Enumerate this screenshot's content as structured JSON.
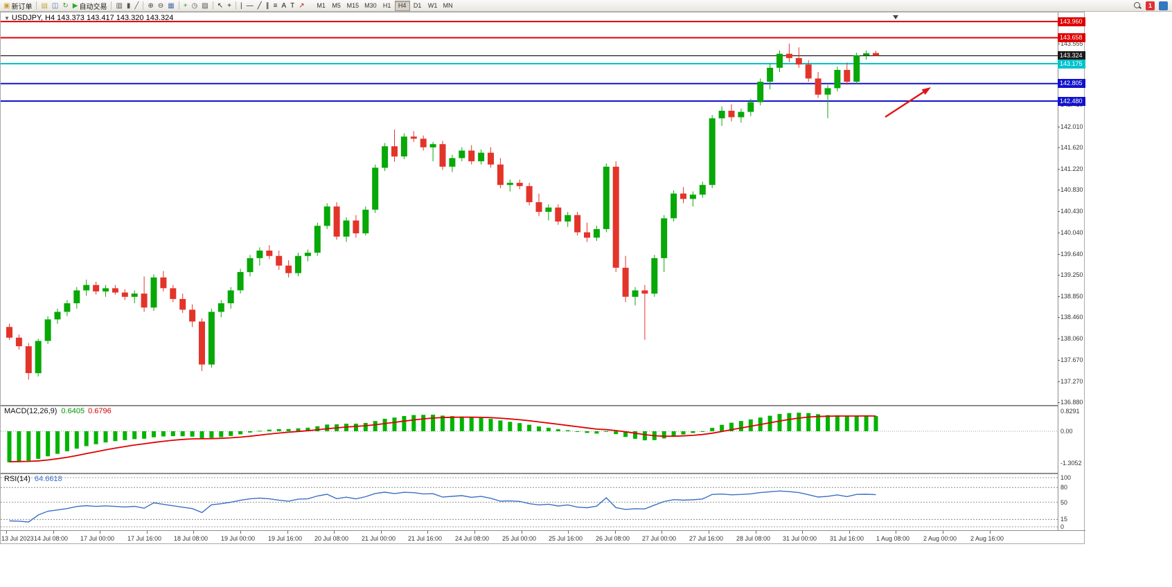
{
  "toolbar": {
    "buttons": [
      {
        "name": "new-order-button",
        "glyph": "▣",
        "glyph_color": "#c8a23a",
        "label": "新订单"
      },
      {
        "sep": true
      },
      {
        "name": "charts-button",
        "glyph": "▤",
        "glyph_color": "#c8a23a"
      },
      {
        "name": "profiles-button",
        "glyph": "◫",
        "glyph_color": "#4a6fb0"
      },
      {
        "name": "refresh-button",
        "glyph": "↻",
        "glyph_color": "#3f9b3f"
      },
      {
        "name": "autotrading-button",
        "glyph": "▶",
        "glyph_color": "#2faa2f",
        "label": "自动交易"
      },
      {
        "sep": true
      },
      {
        "name": "bar-chart-type-button",
        "glyph": "▥",
        "glyph_color": "#555555"
      },
      {
        "name": "candle-chart-type-button",
        "glyph": "▮",
        "glyph_color": "#555555"
      },
      {
        "name": "line-chart-type-button",
        "glyph": "╱",
        "glyph_color": "#555555"
      },
      {
        "sep": true
      },
      {
        "name": "zoom-in-button",
        "glyph": "⊕",
        "glyph_color": "#444444"
      },
      {
        "name": "zoom-out-button",
        "glyph": "⊖",
        "glyph_color": "#444444"
      },
      {
        "name": "tile-windows-button",
        "glyph": "▦",
        "glyph_color": "#4a6fb0"
      },
      {
        "sep": true
      },
      {
        "name": "add-indicator-button",
        "glyph": "+",
        "glyph_color": "#1f9e1f"
      },
      {
        "name": "period-button",
        "glyph": "◷",
        "glyph_color": "#555555"
      },
      {
        "name": "template-button",
        "glyph": "▨",
        "glyph_color": "#555555"
      },
      {
        "sep": true
      },
      {
        "name": "cursor-button",
        "glyph": "↖",
        "glyph_color": "#222222"
      },
      {
        "name": "crosshair-button",
        "glyph": "+",
        "glyph_color": "#222222"
      },
      {
        "sep": true
      },
      {
        "name": "vertical-line-button",
        "glyph": "|",
        "glyph_color": "#222222"
      },
      {
        "name": "horizontal-line-button",
        "glyph": "—",
        "glyph_color": "#222222"
      },
      {
        "name": "trendline-button",
        "glyph": "╱",
        "glyph_color": "#222222"
      },
      {
        "name": "channel-button",
        "glyph": "∥",
        "glyph_color": "#222222"
      },
      {
        "name": "fibonacci-button",
        "glyph": "≡",
        "glyph_color": "#222222"
      },
      {
        "name": "text-button",
        "glyph": "A",
        "glyph_color": "#222222"
      },
      {
        "name": "label-button",
        "glyph": "T",
        "glyph_color": "#222222"
      },
      {
        "name": "arrows-button",
        "glyph": "↗",
        "glyph_color": "#b02020"
      }
    ],
    "timeframes": [
      {
        "label": "M1"
      },
      {
        "label": "M5"
      },
      {
        "label": "M15"
      },
      {
        "label": "M30"
      },
      {
        "label": "H1"
      },
      {
        "label": "H4",
        "active": true
      },
      {
        "label": "D1"
      },
      {
        "label": "W1"
      },
      {
        "label": "MN"
      }
    ],
    "notification_count": "1"
  },
  "chart": {
    "collapse_marker": "▼",
    "title": "USDJPY, H4  143.373 143.417 143.320 143.324",
    "symbol": "USDJPY",
    "timeframe": "H4"
  },
  "chart_data": {
    "type": "candlestick",
    "symbol": "USDJPY",
    "timeframe": "H4",
    "current_bar": {
      "open": 143.373,
      "high": 143.417,
      "low": 143.32,
      "close": 143.324
    },
    "up_color": "#07a807",
    "down_color": "#e3342a",
    "price_axis": {
      "top_price": 144.128,
      "bottom_price": 136.829,
      "ticks": [
        "143.555",
        "142.410",
        "142.010",
        "141.620",
        "141.220",
        "140.830",
        "140.430",
        "140.040",
        "139.640",
        "139.250",
        "138.850",
        "138.460",
        "138.060",
        "137.670",
        "137.270",
        "136.880"
      ]
    },
    "hlines": [
      {
        "price": 143.96,
        "label": "143.960",
        "color": "#dd0000",
        "width": 2
      },
      {
        "price": 143.658,
        "label": "143.658",
        "color": "#dd0000",
        "width": 2
      },
      {
        "price": 143.324,
        "label": "143.324",
        "color": "#1a1a1a",
        "width": 1.2,
        "role": "bid-line"
      },
      {
        "price": 143.175,
        "label": "143.175",
        "color": "#00c3cc",
        "width": 2
      },
      {
        "price": 142.805,
        "label": "142.805",
        "color": "#1212cc",
        "width": 2
      },
      {
        "price": 142.48,
        "label": "142.480",
        "color": "#1212cc",
        "width": 2
      }
    ],
    "arrow": {
      "color": "#e01515",
      "points_at_price": 142.805
    },
    "candles": [
      [
        138.28,
        138.34,
        138.04,
        138.08
      ],
      [
        138.08,
        138.14,
        137.86,
        137.92
      ],
      [
        137.92,
        137.98,
        137.3,
        137.42
      ],
      [
        137.42,
        138.06,
        137.36,
        138.02
      ],
      [
        138.02,
        138.48,
        137.96,
        138.42
      ],
      [
        138.42,
        138.62,
        138.34,
        138.56
      ],
      [
        138.56,
        138.78,
        138.48,
        138.72
      ],
      [
        138.72,
        139.02,
        138.62,
        138.96
      ],
      [
        138.96,
        139.16,
        138.86,
        139.06
      ],
      [
        139.06,
        139.12,
        138.88,
        138.94
      ],
      [
        138.94,
        139.06,
        138.84,
        139.0
      ],
      [
        139.0,
        139.06,
        138.88,
        138.92
      ],
      [
        138.92,
        138.98,
        138.78,
        138.84
      ],
      [
        138.84,
        138.96,
        138.72,
        138.9
      ],
      [
        138.9,
        139.22,
        138.56,
        138.64
      ],
      [
        138.64,
        139.26,
        138.58,
        139.2
      ],
      [
        139.2,
        139.32,
        138.94,
        139.0
      ],
      [
        139.0,
        139.06,
        138.74,
        138.8
      ],
      [
        138.8,
        138.9,
        138.54,
        138.6
      ],
      [
        138.6,
        138.7,
        138.28,
        138.38
      ],
      [
        138.38,
        138.44,
        137.46,
        137.58
      ],
      [
        137.58,
        138.62,
        137.52,
        138.56
      ],
      [
        138.56,
        138.78,
        138.46,
        138.72
      ],
      [
        138.72,
        139.02,
        138.62,
        138.96
      ],
      [
        138.96,
        139.36,
        138.9,
        139.3
      ],
      [
        139.3,
        139.62,
        139.22,
        139.56
      ],
      [
        139.56,
        139.76,
        139.42,
        139.7
      ],
      [
        139.7,
        139.8,
        139.54,
        139.6
      ],
      [
        139.6,
        139.7,
        139.34,
        139.42
      ],
      [
        139.42,
        139.52,
        139.2,
        139.28
      ],
      [
        139.28,
        139.66,
        139.22,
        139.6
      ],
      [
        139.6,
        139.72,
        139.5,
        139.66
      ],
      [
        139.66,
        140.22,
        139.6,
        140.16
      ],
      [
        140.16,
        140.58,
        140.1,
        140.52
      ],
      [
        140.52,
        140.6,
        139.9,
        139.96
      ],
      [
        139.96,
        140.32,
        139.86,
        140.26
      ],
      [
        140.26,
        140.36,
        139.94,
        140.02
      ],
      [
        140.02,
        140.52,
        139.98,
        140.46
      ],
      [
        140.46,
        141.3,
        140.4,
        141.24
      ],
      [
        141.24,
        141.7,
        141.18,
        141.64
      ],
      [
        141.64,
        141.95,
        141.35,
        141.45
      ],
      [
        141.45,
        141.88,
        141.4,
        141.82
      ],
      [
        141.82,
        141.92,
        141.72,
        141.78
      ],
      [
        141.78,
        141.84,
        141.56,
        141.62
      ],
      [
        141.62,
        141.72,
        141.36,
        141.68
      ],
      [
        141.68,
        141.74,
        141.2,
        141.26
      ],
      [
        141.26,
        141.48,
        141.16,
        141.42
      ],
      [
        141.42,
        141.62,
        141.36,
        141.56
      ],
      [
        141.56,
        141.66,
        141.3,
        141.36
      ],
      [
        141.36,
        141.58,
        141.3,
        141.52
      ],
      [
        141.52,
        141.62,
        141.24,
        141.3
      ],
      [
        141.3,
        141.42,
        140.86,
        140.92
      ],
      [
        140.92,
        141.02,
        140.8,
        140.96
      ],
      [
        140.96,
        141.02,
        140.84,
        140.9
      ],
      [
        140.9,
        140.96,
        140.54,
        140.6
      ],
      [
        140.6,
        140.76,
        140.34,
        140.42
      ],
      [
        140.42,
        140.56,
        140.26,
        140.5
      ],
      [
        140.5,
        140.56,
        140.18,
        140.24
      ],
      [
        140.24,
        140.42,
        140.14,
        140.36
      ],
      [
        140.36,
        140.42,
        139.98,
        140.04
      ],
      [
        140.04,
        140.22,
        139.86,
        139.94
      ],
      [
        139.94,
        140.16,
        139.88,
        140.1
      ],
      [
        140.1,
        141.32,
        140.04,
        141.26
      ],
      [
        141.26,
        141.36,
        139.3,
        139.38
      ],
      [
        139.38,
        139.6,
        138.74,
        138.84
      ],
      [
        138.84,
        139.02,
        138.68,
        138.96
      ],
      [
        138.96,
        139.06,
        138.04,
        138.9
      ],
      [
        138.9,
        139.62,
        138.84,
        139.56
      ],
      [
        139.56,
        140.36,
        139.3,
        140.3
      ],
      [
        140.3,
        140.82,
        140.24,
        140.76
      ],
      [
        140.76,
        140.88,
        140.58,
        140.66
      ],
      [
        140.66,
        140.8,
        140.52,
        140.74
      ],
      [
        140.74,
        140.98,
        140.68,
        140.92
      ],
      [
        140.92,
        142.22,
        140.86,
        142.16
      ],
      [
        142.16,
        142.38,
        142.02,
        142.3
      ],
      [
        142.3,
        142.42,
        142.1,
        142.18
      ],
      [
        142.18,
        142.34,
        142.08,
        142.28
      ],
      [
        142.28,
        142.52,
        142.2,
        142.46
      ],
      [
        142.46,
        142.9,
        142.4,
        142.84
      ],
      [
        142.84,
        143.18,
        142.7,
        143.1
      ],
      [
        143.1,
        143.42,
        143.02,
        143.36
      ],
      [
        143.36,
        143.55,
        143.2,
        143.28
      ],
      [
        143.28,
        143.48,
        143.1,
        143.16
      ],
      [
        143.16,
        143.24,
        142.84,
        142.9
      ],
      [
        142.9,
        143.02,
        142.54,
        142.6
      ],
      [
        142.6,
        142.78,
        142.16,
        142.72
      ],
      [
        142.72,
        143.12,
        142.66,
        143.06
      ],
      [
        143.06,
        143.2,
        142.78,
        142.84
      ],
      [
        142.84,
        143.38,
        142.8,
        143.33
      ],
      [
        143.33,
        143.42,
        143.25,
        143.37
      ],
      [
        143.373,
        143.417,
        143.32,
        143.324
      ]
    ],
    "time_labels": [
      "13 Jul 2023",
      "14 Jul 08:00",
      "17 Jul 00:00",
      "17 Jul 16:00",
      "18 Jul 08:00",
      "19 Jul 00:00",
      "19 Jul 16:00",
      "20 Jul 08:00",
      "21 Jul 00:00",
      "21 Jul 16:00",
      "24 Jul 08:00",
      "25 Jul 00:00",
      "25 Jul 16:00",
      "26 Jul 08:00",
      "27 Jul 00:00",
      "27 Jul 16:00",
      "28 Jul 08:00",
      "31 Jul 00:00",
      "31 Jul 16:00",
      "1 Aug 08:00",
      "2 Aug 00:00",
      "2 Aug 16:00"
    ],
    "macd": {
      "label": "MACD(12,26,9)",
      "main_value": "0.6405",
      "signal_value": "0.6796",
      "scale": [
        "0.8291",
        "0.00",
        "-1.3052"
      ],
      "histogram_color": "#00b400",
      "signal_color": "#e00000"
    },
    "rsi": {
      "label": "RSI(14)",
      "value": "64.6618",
      "levels": [
        100,
        80,
        50,
        15,
        0
      ],
      "line_color": "#3a6fc4"
    }
  }
}
